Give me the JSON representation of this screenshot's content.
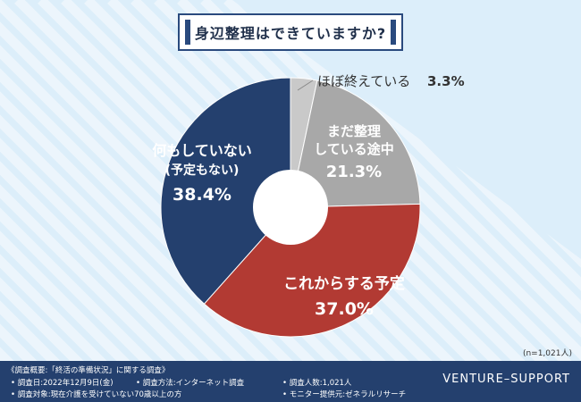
{
  "title": "身辺整理はできていますか?",
  "sample_note": "(n=1,021人)",
  "colors": {
    "background": "#dceefa",
    "stripe": "#ecf5fc",
    "navy": "#24406e",
    "red": "#b23a33",
    "gray": "#a8a8a8",
    "lightgray": "#c9c9c9"
  },
  "chart_data": {
    "type": "pie",
    "donut": true,
    "start_angle_deg": 0,
    "direction": "clockwise",
    "slices": [
      {
        "label": "ほぼ終えている",
        "value": 3.3,
        "value_label": "3.3%",
        "color": "#c9c9c9"
      },
      {
        "label": "まだ整理している途中",
        "value": 21.3,
        "value_label": "21.3%",
        "color": "#a8a8a8"
      },
      {
        "label": "これからする予定",
        "value": 37.0,
        "value_label": "37.0%",
        "color": "#b23a33"
      },
      {
        "label": "何もしていない(予定もない)",
        "value": 38.4,
        "value_label": "38.4%",
        "color": "#24406e"
      }
    ]
  },
  "labels": {
    "s0_name": "ほぼ終えている",
    "s0_value": "3.3%",
    "s1_line1": "まだ整理",
    "s1_line2": "している途中",
    "s1_value": "21.3%",
    "s2_name": "これからする予定",
    "s2_value": "37.0%",
    "s3_line1": "何もしていない",
    "s3_line2": "(予定もない)",
    "s3_value": "38.4%"
  },
  "footer": {
    "overview": "《調査概要:「終活の準備状況」に関する調査》",
    "date": "• 調査日:2022年12月9日(金)",
    "method": "• 調査方法:インターネット調査",
    "count": "• 調査人数:1,021人",
    "target": "• 調査対象:現在介護を受けていない70歳以上の方",
    "provider": "• モニター提供元:ゼネラルリサーチ",
    "brand": "VENTURE–SUPPORT"
  }
}
